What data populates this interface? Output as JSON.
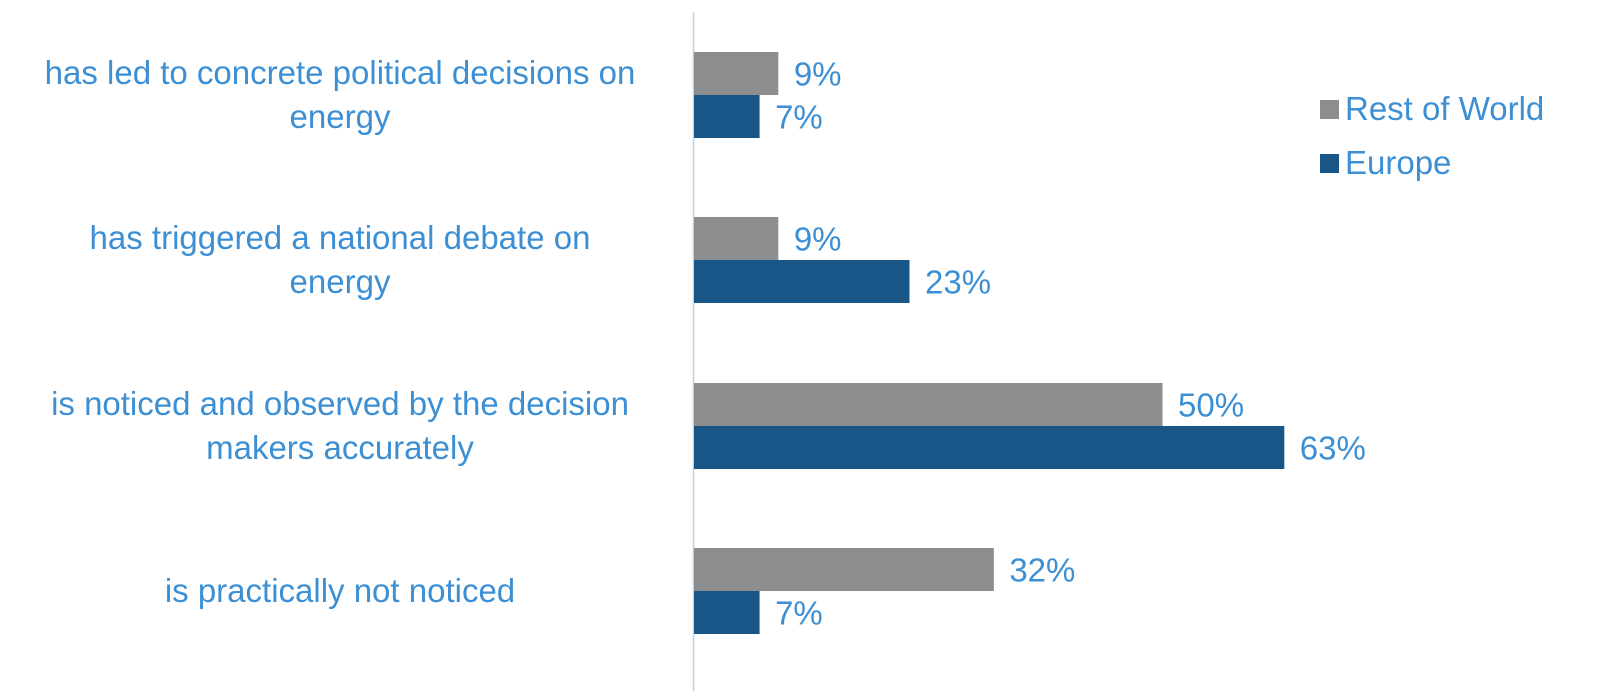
{
  "chart_data": {
    "type": "bar",
    "orientation": "horizontal",
    "categories": [
      [
        "has led to concrete political decisions on",
        "energy"
      ],
      [
        "has triggered a national debate on",
        "energy"
      ],
      [
        "is noticed and observed by the decision",
        "makers accurately"
      ],
      [
        "is practically not noticed"
      ]
    ],
    "series": [
      {
        "name": "Rest of World",
        "values": [
          9,
          9,
          50,
          32
        ],
        "color": "#8c8d8f"
      },
      {
        "name": "Europe",
        "values": [
          7,
          23,
          63,
          7
        ],
        "color": "#175687"
      }
    ],
    "value_suffix": "%",
    "xlim": [
      0,
      100
    ],
    "grid": false,
    "legend": "right",
    "text_color": "#3d8fd4",
    "axis_color": "#b8d3ea"
  }
}
